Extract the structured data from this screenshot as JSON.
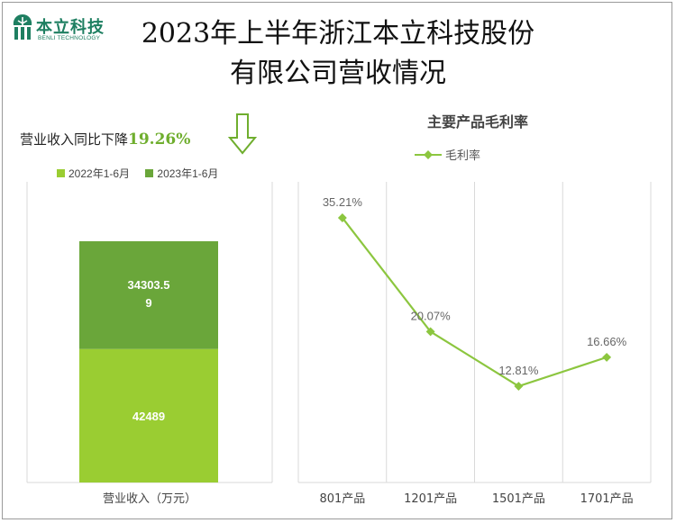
{
  "logo": {
    "name": "本立科技",
    "sub": "BENLI TECHNOLOGY"
  },
  "title_line1": "2023年上半年浙江本立科技股份",
  "title_line2": "有限公司营收情况",
  "decline_text": "营业收入同比下降",
  "decline_pct": "19.26%",
  "colors": {
    "bar_2022": "#9acd32",
    "bar_2023": "#6aa63a",
    "line": "#8cc63f",
    "title_green": "#6fae2e"
  },
  "chart_data": [
    {
      "type": "bar",
      "stacked": true,
      "categories": [
        "营业收入（万元）"
      ],
      "series": [
        {
          "name": "2022年1-6月",
          "values": [
            42489
          ]
        },
        {
          "name": "2023年1-6月",
          "values": [
            34303.59
          ]
        }
      ],
      "data_labels": [
        "42489",
        "34303.5",
        "9"
      ],
      "xlabel": "营业收入（万元）",
      "legend": "top",
      "grid": false
    },
    {
      "type": "line",
      "title": "主要产品毛利率",
      "categories": [
        "801产品",
        "1201产品",
        "1501产品",
        "1701产品"
      ],
      "series": [
        {
          "name": "毛利率",
          "values": [
            35.21,
            20.07,
            12.81,
            16.66
          ],
          "labels": [
            "35.21%",
            "20.07%",
            "12.81%",
            "16.66%"
          ]
        }
      ],
      "ylim": [
        0,
        40
      ],
      "legend": "top",
      "grid": "vertical"
    }
  ]
}
